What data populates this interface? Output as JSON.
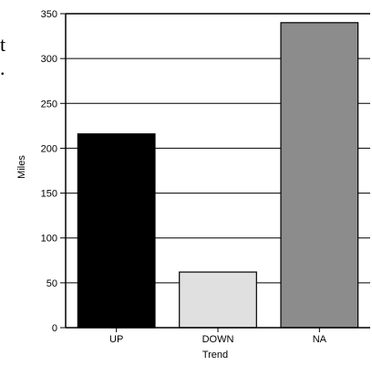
{
  "chart_data": {
    "type": "bar",
    "categories": [
      "UP",
      "DOWN",
      "NA"
    ],
    "values": [
      216,
      62,
      340
    ],
    "xlabel": "Trend",
    "ylabel": "Miles",
    "ylim": [
      0,
      350
    ],
    "yticks": [
      0,
      50,
      100,
      150,
      200,
      250,
      300,
      350
    ],
    "grid": "horizontal",
    "legend": "none",
    "bar_colors": [
      "#000000",
      "#e0e0e0",
      "#8c8c8c"
    ],
    "bar_edge_color": "#000000"
  },
  "fragments": [
    "t",
    "."
  ]
}
